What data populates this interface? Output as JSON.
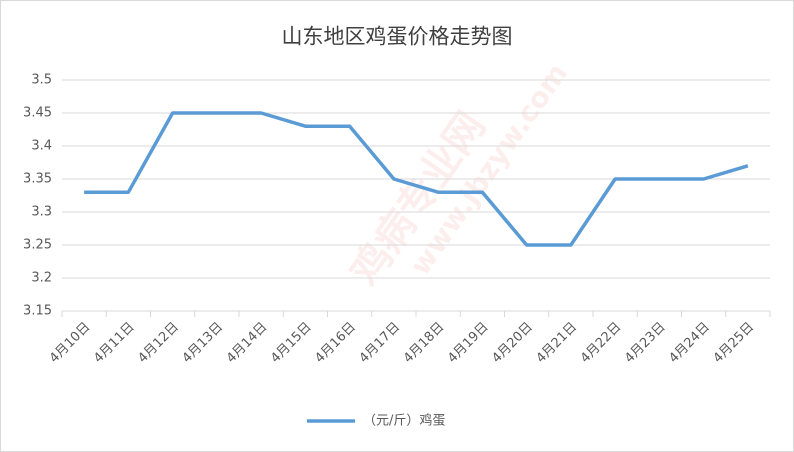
{
  "chart_data": {
    "type": "line",
    "title": "山东地区鸡蛋价格走势图",
    "watermark": [
      "鸡病专业网",
      "www.jbzyw.com"
    ],
    "categories": [
      "4月10日",
      "4月11日",
      "4月12日",
      "4月13日",
      "4月14日",
      "4月15日",
      "4月16日",
      "4月17日",
      "4月18日",
      "4月19日",
      "4月20日",
      "4月21日",
      "4月22日",
      "4月23日",
      "4月24日",
      "4月25日"
    ],
    "series": [
      {
        "name": "（元/斤）鸡蛋",
        "color": "#5b9bd5",
        "values": [
          3.33,
          3.33,
          3.45,
          3.45,
          3.45,
          3.43,
          3.43,
          3.35,
          3.33,
          3.33,
          3.25,
          3.25,
          3.35,
          3.35,
          3.35,
          3.37
        ]
      }
    ],
    "ylim": [
      3.15,
      3.5
    ],
    "yticks": [
      3.15,
      3.2,
      3.25,
      3.3,
      3.35,
      3.4,
      3.45,
      3.5
    ],
    "grid": true,
    "legend": "bottom"
  }
}
